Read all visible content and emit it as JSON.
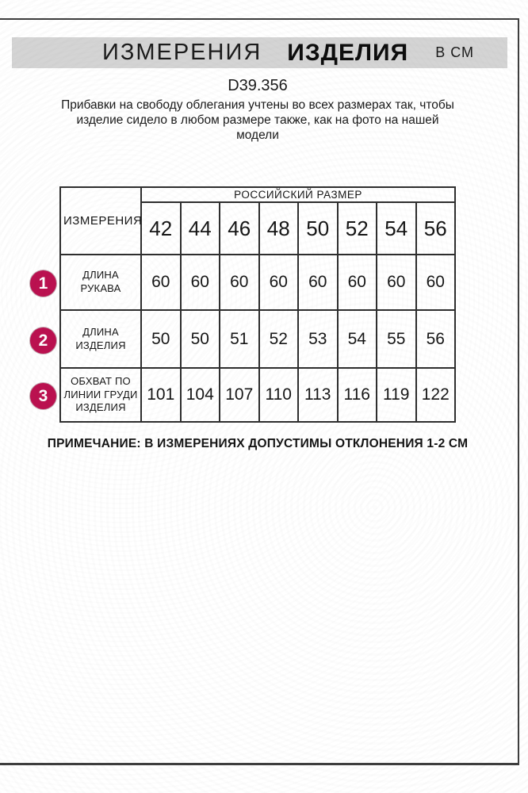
{
  "header": {
    "title_measurements": "ИЗМЕРЕНИЯ",
    "title_product": "ИЗДЕЛИЯ",
    "title_units": "В СМ",
    "article_code": "D39.356",
    "description_lines": [
      "Прибавки на свободу облегания учтены во всех размерах так, чтобы",
      "изделие сидело в любом размере также, как на фото на нашей",
      "модели"
    ]
  },
  "table": {
    "corner_header": "ИЗМЕРЕНИЯ",
    "group_header": "РОССИЙСКИЙ РАЗМЕР",
    "sizes": [
      "42",
      "44",
      "46",
      "48",
      "50",
      "52",
      "54",
      "56"
    ],
    "rows": [
      {
        "num": "1",
        "label": "ДЛИНА РУКАВА",
        "values": [
          "60",
          "60",
          "60",
          "60",
          "60",
          "60",
          "60",
          "60"
        ]
      },
      {
        "num": "2",
        "label": "ДЛИНА ИЗДЕЛИЯ",
        "values": [
          "50",
          "50",
          "51",
          "52",
          "53",
          "54",
          "55",
          "56"
        ]
      },
      {
        "num": "3",
        "label": "ОБХВАТ ПО ЛИНИИ ГРУДИ ИЗДЕЛИЯ",
        "values": [
          "101",
          "104",
          "107",
          "110",
          "113",
          "116",
          "119",
          "122"
        ]
      }
    ]
  },
  "note": "ПРИМЕЧАНИЕ: В ИЗМЕРЕНИЯХ ДОПУСТИМЫ ОТКЛОНЕНИЯ 1-2 СМ",
  "colors": {
    "accent_circle": "#bb1150",
    "title_bar_bg": "#d4d4d4",
    "border": "#2e2e2e"
  }
}
